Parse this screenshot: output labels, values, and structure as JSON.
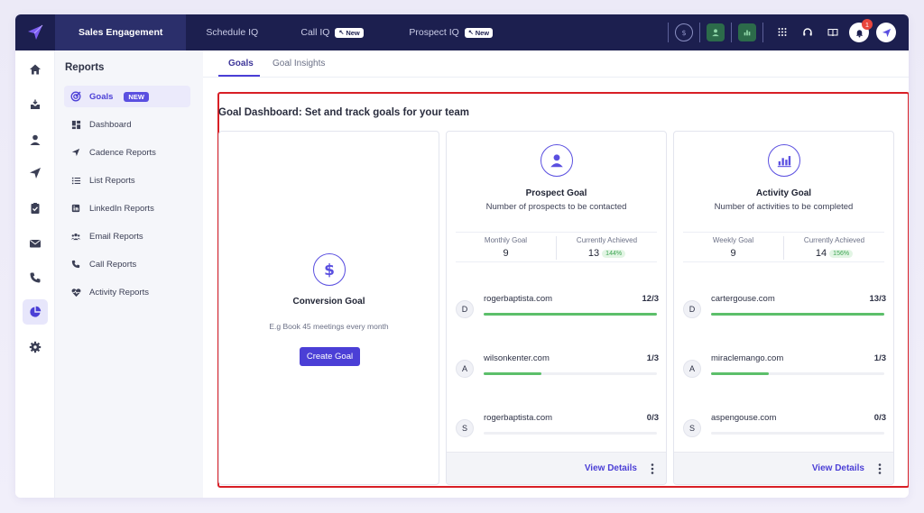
{
  "topnav": {
    "tabs": [
      {
        "label": "Sales Engagement",
        "new": ""
      },
      {
        "label": "Schedule IQ",
        "new": ""
      },
      {
        "label": "Call IQ",
        "new": "New"
      },
      {
        "label": "Prospect IQ",
        "new": "New"
      }
    ],
    "notification_count": "1"
  },
  "rail": {
    "icons": [
      "home-icon",
      "inbox-icon",
      "user-icon",
      "send-icon",
      "clipboard-icon",
      "mail-icon",
      "phone-icon",
      "pie-chart-icon",
      "gear-icon"
    ]
  },
  "reports": {
    "title": "Reports",
    "items": [
      {
        "label": "Goals",
        "badge": "NEW"
      },
      {
        "label": "Dashboard"
      },
      {
        "label": "Cadence Reports"
      },
      {
        "label": "List Reports"
      },
      {
        "label": "LinkedIn Reports"
      },
      {
        "label": "Email Reports"
      },
      {
        "label": "Call Reports"
      },
      {
        "label": "Activity Reports"
      }
    ]
  },
  "subtabs": [
    "Goals",
    "Goal Insights"
  ],
  "dashboard": {
    "title": "Goal Dashboard: Set and track goals for your team",
    "conversion": {
      "title": "Conversion Goal",
      "hint": "E.g Book 45 meetings every month",
      "button": "Create Goal"
    },
    "prospect": {
      "title": "Prospect Goal",
      "subtitle": "Number of prospects to be contacted",
      "goal_label": "Monthly Goal",
      "goal_value": "9",
      "achieved_label": "Currently Achieved",
      "achieved_value": "13",
      "achieved_pct": "144%",
      "rows": [
        {
          "initial": "D",
          "name": "rogerbaptista.com",
          "count": "12/3",
          "progress": 1.0
        },
        {
          "initial": "A",
          "name": "wilsonkenter.com",
          "count": "1/3",
          "progress": 0.333
        },
        {
          "initial": "S",
          "name": "rogerbaptista.com",
          "count": "0/3",
          "progress": 0.0
        }
      ],
      "footer": "View Details"
    },
    "activity": {
      "title": "Activity Goal",
      "subtitle": "Number of activities to be completed",
      "goal_label": "Weekly Goal",
      "goal_value": "9",
      "achieved_label": "Currently Achieved",
      "achieved_value": "14",
      "achieved_pct": "156%",
      "rows": [
        {
          "initial": "D",
          "name": "cartergouse.com",
          "count": "13/3",
          "progress": 1.0
        },
        {
          "initial": "A",
          "name": "miraclemango.com",
          "count": "1/3",
          "progress": 0.333
        },
        {
          "initial": "S",
          "name": "aspengouse.com",
          "count": "0/3",
          "progress": 0.0
        }
      ],
      "footer": "View Details"
    }
  },
  "colors": {
    "nav_bg": "#1c1f4f",
    "accent": "#4b3fd6",
    "progress": "#5cbf6a",
    "highlight": "#d81f26"
  }
}
